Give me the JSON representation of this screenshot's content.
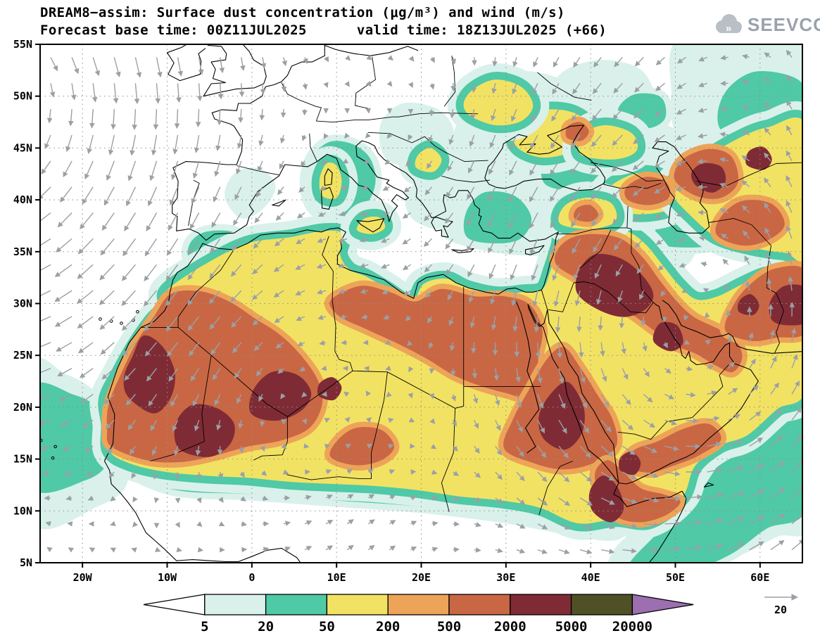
{
  "header": {
    "title": "DREAM8−assim: Surface dust concentration (μg/m³) and wind (m/s)",
    "subtitle": "Forecast base time: 00Z11JUL2025      valid time: 18Z13JUL2025 (+66)",
    "logo": "SEEVCCC"
  },
  "chart_data": {
    "type": "heatmap",
    "title": "DREAM8−assim: Surface dust concentration (μg/m³) and wind (m/s)",
    "variable": "Surface dust concentration",
    "units": "μg/m³",
    "wind_variable": "wind",
    "wind_units": "m/s",
    "forecast_base_time": "00Z11JUL2025",
    "valid_time": "18Z13JUL2025",
    "forecast_hour": "+66",
    "lat_ticks": [
      "55N",
      "50N",
      "45N",
      "40N",
      "35N",
      "30N",
      "25N",
      "20N",
      "15N",
      "10N",
      "5N"
    ],
    "lon_ticks": [
      "20W",
      "10W",
      "0",
      "10E",
      "20E",
      "30E",
      "40E",
      "50E",
      "60E"
    ],
    "lon_range": [
      -25,
      65
    ],
    "lat_range": [
      5,
      55
    ],
    "grid": "dotted",
    "legend_position": "bottom",
    "colorbar": {
      "levels": [
        "5",
        "20",
        "50",
        "200",
        "500",
        "2000",
        "5000",
        "20000"
      ],
      "colors": [
        "#ffffff",
        "#d9f1ea",
        "#4fc9a6",
        "#f2e263",
        "#eda458",
        "#c96744",
        "#7f2b35",
        "#4f5026",
        "#9b6fb0"
      ]
    },
    "wind_reference": {
      "value": "20",
      "speed_ms": 20
    },
    "hotspots": [
      {
        "region": "Western Sahara / N Mauritania coast",
        "level_ug_m3": "2000-5000"
      },
      {
        "region": "Mali (Timbuktu region)",
        "level_ug_m3": "2000-5000"
      },
      {
        "region": "Southern Algeria / Hoggar",
        "level_ug_m3": "2000-5000"
      },
      {
        "region": "NE Sudan / Red Sea coast",
        "level_ug_m3": "2000-5000"
      },
      {
        "region": "Afar / Djibouti",
        "level_ug_m3": "2000-5000"
      },
      {
        "region": "Yemen interior",
        "level_ug_m3": "2000-5000"
      },
      {
        "region": "Iraq / Mesopotamia into Syria",
        "level_ug_m3": "2000-5000"
      },
      {
        "region": "NE Caspian lowland",
        "level_ug_m3": "2000-5000"
      },
      {
        "region": "SE Iran / Makran (map east edge)",
        "level_ug_m3": "2000-5000"
      }
    ],
    "background_belt": "Sahara-Sahel-Arabia dust belt 50-2000 μg/m³ with 20-50 μg/m³ fringe over Sahel, tropical Atlantic, Mediterranean coasts, Anatolia-Caucasus-Caspian and NW Arabian Sea"
  }
}
